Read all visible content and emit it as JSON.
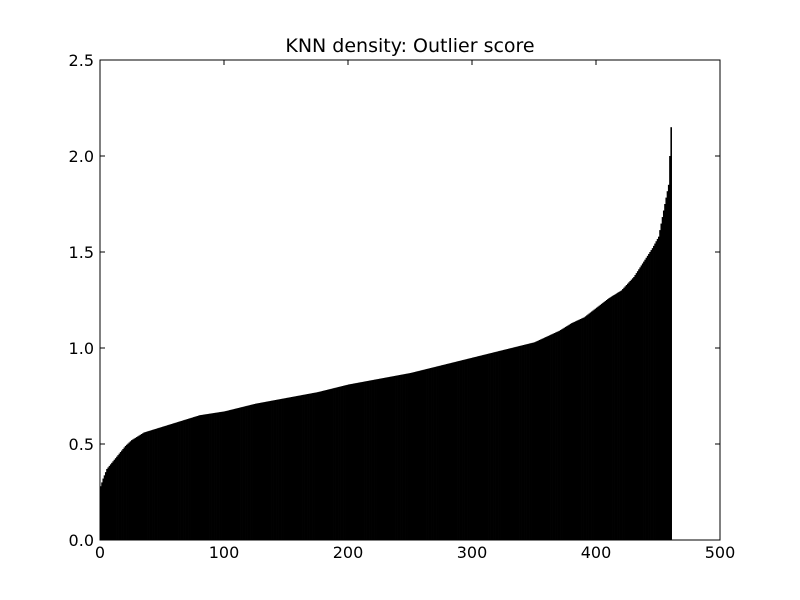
{
  "chart_data": {
    "type": "bar",
    "title": "KNN density: Outlier score",
    "xlabel": "",
    "ylabel": "",
    "xlim": [
      0,
      500
    ],
    "ylim": [
      0,
      2.5
    ],
    "x_ticks": [
      0,
      100,
      200,
      300,
      400,
      500
    ],
    "x_tick_labels": [
      "0",
      "100",
      "200",
      "300",
      "400",
      "500"
    ],
    "y_ticks": [
      0.0,
      0.5,
      1.0,
      1.5,
      2.0,
      2.5
    ],
    "y_tick_labels": [
      "0.0",
      "0.5",
      "1.0",
      "1.5",
      "2.0",
      "2.5"
    ],
    "grid": false,
    "bar_color": "#000000",
    "n_points": 461,
    "sorted_ascending": true,
    "profile": {
      "x": [
        0,
        2,
        5,
        10,
        15,
        20,
        25,
        30,
        35,
        40,
        45,
        60,
        80,
        100,
        125,
        150,
        175,
        200,
        225,
        250,
        275,
        300,
        325,
        350,
        370,
        380,
        390,
        400,
        410,
        420,
        430,
        440,
        445,
        450,
        455,
        458,
        459,
        460
      ],
      "y": [
        0.28,
        0.32,
        0.37,
        0.41,
        0.45,
        0.49,
        0.52,
        0.54,
        0.56,
        0.57,
        0.58,
        0.61,
        0.65,
        0.67,
        0.71,
        0.74,
        0.77,
        0.81,
        0.84,
        0.87,
        0.91,
        0.95,
        0.99,
        1.03,
        1.09,
        1.13,
        1.16,
        1.21,
        1.26,
        1.3,
        1.37,
        1.47,
        1.52,
        1.58,
        1.75,
        1.85,
        2.0,
        2.15
      ]
    }
  }
}
